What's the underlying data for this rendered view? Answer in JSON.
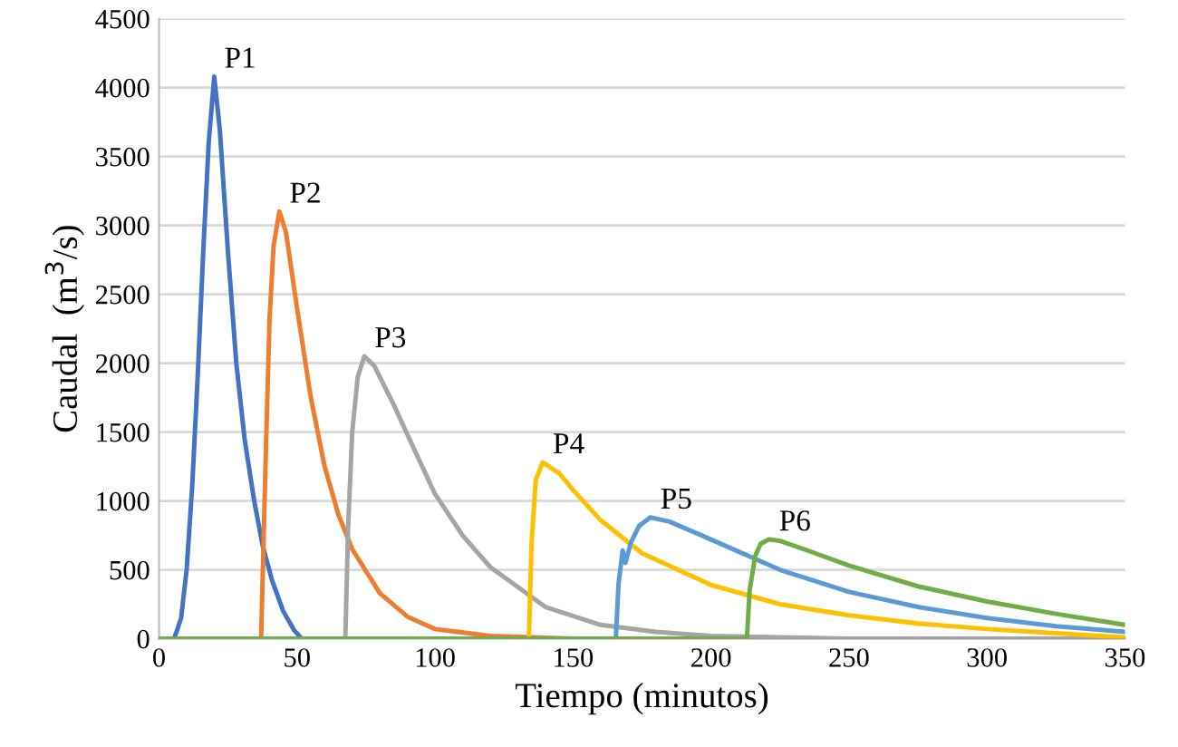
{
  "chart_data": {
    "type": "line",
    "xlabel": "Tiempo (minutos)",
    "ylabel": "Caudal  (m$^{3}$/s)",
    "xlim": [
      0,
      350
    ],
    "ylim": [
      0,
      4500
    ],
    "xticks": [
      0,
      50,
      100,
      150,
      200,
      250,
      300,
      350
    ],
    "yticks": [
      0,
      500,
      1000,
      1500,
      2000,
      2500,
      3000,
      3500,
      4000,
      4500
    ],
    "grid": "y",
    "legend": false,
    "marker": "none",
    "line_style": "solid",
    "series": [
      {
        "name": "P1",
        "color": "#4472c4",
        "x": [
          0,
          5.5,
          8,
          10,
          12,
          14,
          16,
          18,
          20,
          22,
          25,
          28,
          31,
          34.4,
          37.6,
          41,
          45,
          49,
          51.7,
          350
        ],
        "values": [
          0,
          0,
          150,
          500,
          1100,
          1900,
          2800,
          3600,
          4080,
          3700,
          2800,
          2000,
          1450,
          1010,
          670,
          420,
          200,
          60,
          0,
          0
        ]
      },
      {
        "name": "P2",
        "color": "#ed7d31",
        "x": [
          0,
          37,
          38.5,
          40,
          41.5,
          43.6,
          46,
          50,
          55,
          60,
          65,
          70,
          80,
          90,
          100,
          120,
          150,
          350
        ],
        "values": [
          0,
          0,
          1200,
          2300,
          2850,
          3100,
          2950,
          2400,
          1750,
          1250,
          900,
          650,
          330,
          160,
          70,
          20,
          0,
          0
        ]
      },
      {
        "name": "P3",
        "color": "#a5a5a5",
        "x": [
          0,
          67.5,
          68.5,
          70,
          72,
          74.4,
          78,
          85,
          90,
          100,
          110,
          120,
          140,
          160,
          180,
          200,
          250,
          350
        ],
        "values": [
          0,
          0,
          800,
          1500,
          1900,
          2050,
          1980,
          1700,
          1480,
          1050,
          750,
          520,
          230,
          100,
          50,
          20,
          0,
          0
        ]
      },
      {
        "name": "P4",
        "color": "#ffc000",
        "x": [
          0,
          134,
          135,
          136.5,
          139,
          145,
          150,
          160,
          175,
          200,
          225,
          250,
          275,
          300,
          325,
          350
        ],
        "values": [
          0,
          0,
          700,
          1150,
          1280,
          1200,
          1080,
          860,
          620,
          390,
          250,
          170,
          110,
          70,
          40,
          10
        ]
      },
      {
        "name": "P5",
        "color": "#5b9bd5",
        "x": [
          0,
          165.5,
          166.5,
          168,
          169,
          171,
          174,
          178,
          185,
          200,
          225,
          250,
          275,
          300,
          325,
          350
        ],
        "values": [
          0,
          0,
          400,
          640,
          550,
          700,
          820,
          880,
          850,
          720,
          500,
          340,
          230,
          150,
          90,
          50
        ]
      },
      {
        "name": "P6",
        "color": "#70ad47",
        "x": [
          0,
          213,
          214,
          216,
          218,
          221,
          225,
          235,
          250,
          275,
          300,
          325,
          350
        ],
        "values": [
          0,
          0,
          350,
          600,
          690,
          720,
          710,
          640,
          530,
          380,
          270,
          180,
          100
        ]
      }
    ]
  }
}
